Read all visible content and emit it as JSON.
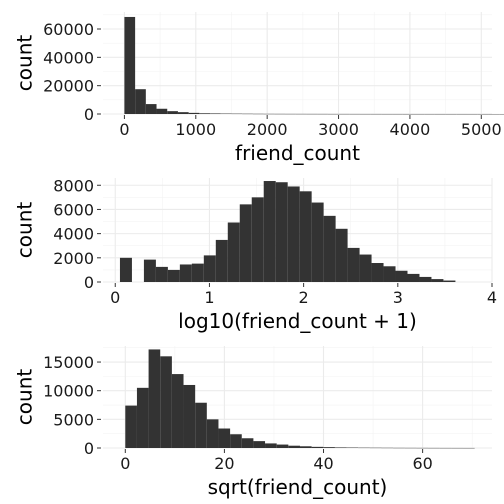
{
  "chart_data": [
    {
      "type": "bar",
      "xlabel": "friend_count",
      "ylabel": "count",
      "xlim": [
        -300,
        5150
      ],
      "ylim": [
        0,
        72000
      ],
      "xticks": [
        0,
        1000,
        2000,
        3000,
        4000,
        5000
      ],
      "xtick_labels": [
        "0",
        "1000",
        "2000",
        "3000",
        "4000",
        "5000"
      ],
      "yticks": [
        0,
        20000,
        40000,
        60000
      ],
      "ytick_labels": [
        "0",
        "20000",
        "40000",
        "60000"
      ],
      "bin_start": 0,
      "bin_width": 150,
      "values": [
        68500,
        17500,
        7000,
        3700,
        2000,
        1300,
        800,
        500,
        400,
        300,
        250,
        200,
        150,
        120,
        100,
        90,
        80,
        70,
        60,
        50,
        45,
        40,
        35,
        30,
        28,
        25,
        22,
        20,
        18,
        15,
        12,
        12,
        10,
        10,
        9,
        8,
        7,
        6,
        5,
        5,
        4,
        4,
        3,
        3,
        3,
        3,
        3,
        2,
        2,
        2,
        2,
        2,
        2,
        2,
        2,
        2,
        2,
        2,
        2,
        2,
        2,
        2,
        2
      ],
      "bar_color": "#333333",
      "grid": true,
      "theme": "minimal"
    },
    {
      "type": "bar",
      "xlabel": "log10(friend_count + 1)",
      "ylabel": "count",
      "xlim": [
        -0.13,
        4.0
      ],
      "ylim": [
        0,
        8600
      ],
      "xticks": [
        0,
        1,
        2,
        3,
        4
      ],
      "xtick_labels": [
        "0",
        "1",
        "2",
        "3",
        "4"
      ],
      "yticks": [
        0,
        2000,
        4000,
        6000,
        8000
      ],
      "ytick_labels": [
        "0",
        "2000",
        "4000",
        "6000",
        "8000"
      ],
      "bin_start": 0.05,
      "bin_width": 0.1272,
      "values": [
        2000,
        0,
        1850,
        1250,
        1000,
        1450,
        1520,
        2200,
        3480,
        4920,
        6420,
        7000,
        8350,
        8250,
        7900,
        7500,
        6570,
        5470,
        4400,
        2820,
        2270,
        1570,
        1300,
        930,
        670,
        420,
        240,
        120
      ],
      "bar_color": "#333333",
      "grid": true,
      "theme": "minimal"
    },
    {
      "type": "bar",
      "xlabel": "sqrt(friend_count)",
      "ylabel": "count",
      "xlim": [
        -4.5,
        74
      ],
      "ylim": [
        0,
        17800
      ],
      "xticks": [
        0,
        20,
        40,
        60
      ],
      "xtick_labels": [
        "0",
        "20",
        "40",
        "60"
      ],
      "yticks": [
        0,
        5000,
        10000,
        15000
      ],
      "ytick_labels": [
        "0",
        "5000",
        "10000",
        "15000"
      ],
      "bin_start": 0,
      "bin_width": 2.35,
      "values": [
        7400,
        10500,
        17200,
        16000,
        12900,
        11000,
        7900,
        5000,
        3400,
        2400,
        1700,
        1200,
        800,
        600,
        400,
        300,
        200,
        150,
        100,
        80,
        60,
        50,
        40,
        30,
        25,
        20,
        15,
        12,
        10,
        8
      ],
      "bar_color": "#333333",
      "grid": true,
      "theme": "minimal"
    }
  ]
}
